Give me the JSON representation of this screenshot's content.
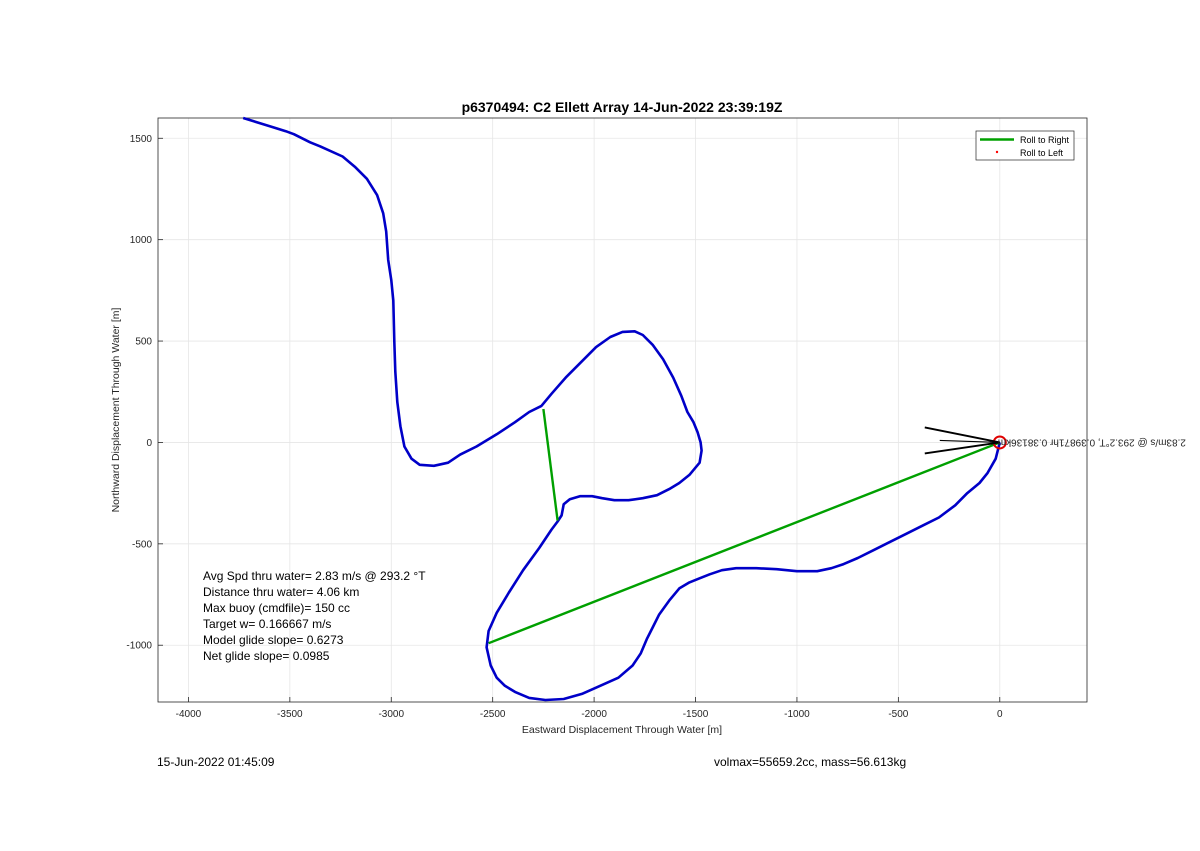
{
  "chart_data": {
    "type": "line",
    "title": "p6370494: C2 Ellett Array 14-Jun-2022 23:39:19Z",
    "xlabel": "Eastward Displacement Through Water [m]",
    "ylabel": "Northward Displacement Through Water [m]",
    "xlim": [
      -4150,
      430
    ],
    "ylim": [
      -1280,
      1600
    ],
    "xticks": [
      -4000,
      -3500,
      -3000,
      -2500,
      -2000,
      -1500,
      -1000,
      -500,
      0
    ],
    "yticks": [
      -1000,
      -500,
      0,
      500,
      1000,
      1500
    ],
    "grid": true,
    "legend": {
      "position": "top-right",
      "entries": [
        {
          "label": "Roll to Right",
          "color": "#00a000",
          "style": "line"
        },
        {
          "label": "Roll to Left",
          "color": "#ff0000",
          "style": "dot"
        }
      ]
    },
    "series": [
      {
        "color": "#0000c8",
        "x": [
          -3730,
          -3520,
          -3480,
          -3400,
          -3350,
          -3240,
          -3180,
          -3120,
          -3070,
          -3040,
          -3025,
          -3020,
          -3015,
          -3000,
          -2990,
          -2985,
          -2980,
          -2970,
          -2955,
          -2935,
          -2900,
          -2860,
          -2790,
          -2720,
          -2660,
          -2580,
          -2480,
          -2390,
          -2320,
          -2260,
          -2210,
          -2140,
          -2060,
          -1990,
          -1920,
          -1860,
          -1800,
          -1760,
          -1710,
          -1660,
          -1610,
          -1570,
          -1540,
          -1510,
          -1490,
          -1475,
          -1470,
          -1480,
          -1530,
          -1580,
          -1630,
          -1690,
          -1760,
          -1830,
          -1900,
          -1960,
          -2010,
          -2070,
          -2120,
          -2150,
          -2160,
          -2180,
          -2210,
          -2270,
          -2350,
          -2420,
          -2480,
          -2520,
          -2530,
          -2510,
          -2480,
          -2440,
          -2390,
          -2320,
          -2240,
          -2150,
          -2060,
          -1970,
          -1880,
          -1810,
          -1770,
          -1740,
          -1710,
          -1680,
          -1630,
          -1580,
          -1530,
          -1480,
          -1430,
          -1370,
          -1300,
          -1200,
          -1100,
          -1000,
          -900,
          -830,
          -770,
          -700,
          -620,
          -540,
          -460,
          -380,
          -300,
          -220,
          -160,
          -100,
          -60,
          -20,
          0
        ],
        "y": [
          1600,
          1535,
          1520,
          1480,
          1460,
          1410,
          1360,
          1300,
          1220,
          1130,
          1040,
          970,
          900,
          800,
          700,
          500,
          350,
          200,
          80,
          -20,
          -80,
          -110,
          -115,
          -100,
          -60,
          -20,
          40,
          100,
          150,
          180,
          240,
          320,
          400,
          470,
          520,
          545,
          548,
          530,
          480,
          410,
          320,
          230,
          150,
          100,
          50,
          0,
          -40,
          -100,
          -160,
          -200,
          -230,
          -260,
          -275,
          -285,
          -285,
          -275,
          -265,
          -265,
          -280,
          -305,
          -360,
          -390,
          -430,
          -520,
          -630,
          -740,
          -840,
          -930,
          -1010,
          -1100,
          -1160,
          -1200,
          -1230,
          -1260,
          -1270,
          -1265,
          -1240,
          -1200,
          -1160,
          -1100,
          -1040,
          -970,
          -910,
          -850,
          -780,
          -720,
          -690,
          -670,
          -650,
          -630,
          -620,
          -620,
          -625,
          -635,
          -635,
          -620,
          -600,
          -570,
          -530,
          -490,
          -450,
          -410,
          -370,
          -310,
          -250,
          -200,
          -150,
          -80,
          0
        ]
      }
    ],
    "roll_segments": [
      {
        "x": [
          -2250,
          -2180
        ],
        "y": [
          165,
          -385
        ]
      },
      {
        "x": [
          -2520,
          0
        ],
        "y": [
          -990,
          0
        ]
      }
    ],
    "markers": [
      {
        "type": "circle",
        "x": 0,
        "y": 0,
        "color": "#e00000"
      }
    ],
    "annotation": {
      "text": "2.83m/s @ 293.2°T, 0.39871hr 0.38136km",
      "arrow_tip": [
        0,
        0
      ]
    }
  },
  "stats": {
    "avg_spd": "Avg Spd thru water=  2.83 m/s @ 293.2 °T",
    "distance": "Distance thru water=  4.06 km",
    "max_buoy": "Max buoy (cmdfile)= 150 cc",
    "target_w": "Target w= 0.166667 m/s",
    "model_glide": "Model glide slope= 0.6273",
    "net_glide": "Net glide slope= 0.0985"
  },
  "footer": {
    "date": "15-Jun-2022 01:45:09",
    "volmax": "volmax=55659.2cc, mass=56.613kg"
  }
}
